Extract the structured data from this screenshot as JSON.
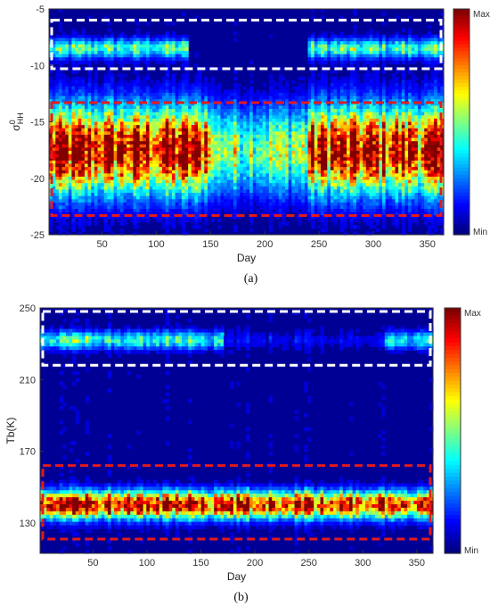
{
  "chart_data": [
    {
      "type": "heatmap",
      "panel_label": "(a)",
      "xlabel": "Day",
      "ylabel": "σ⁰HH",
      "ylabel_main": "σ",
      "ylabel_sup": "0",
      "ylabel_sub": "HH",
      "xlim": [
        1,
        365
      ],
      "ylim": [
        -25,
        -5
      ],
      "x_ticks": [
        50,
        100,
        150,
        200,
        250,
        300,
        350
      ],
      "y_ticks": [
        -25,
        -20,
        -15,
        -10,
        -5
      ],
      "colorbar": {
        "max_label": "Max",
        "min_label": "Min"
      },
      "regions": [
        {
          "color": "#ffffff",
          "x": [
            1,
            365
          ],
          "y": [
            -10.3,
            -6.0
          ]
        },
        {
          "color": "#e31a1c",
          "x": [
            1,
            365
          ],
          "y": [
            -23.3,
            -13.3
          ]
        }
      ],
      "bands": [
        {
          "center": -17.5,
          "width": 4.5,
          "intensity": 1.0,
          "dip_start": 150,
          "dip_end": 240,
          "dip_factor": 0.55
        },
        {
          "center": -8.5,
          "width": 1.0,
          "intensity": 0.42,
          "dip_start": 130,
          "dip_end": 240,
          "dip_factor": 0.0
        }
      ]
    },
    {
      "type": "heatmap",
      "panel_label": "(b)",
      "xlabel": "Day",
      "ylabel": "Tb(K)",
      "xlim": [
        1,
        365
      ],
      "ylim": [
        113,
        250
      ],
      "x_ticks": [
        50,
        100,
        150,
        200,
        250,
        300,
        350
      ],
      "y_ticks": [
        130,
        170,
        210,
        250
      ],
      "colorbar": {
        "max_label": "Max",
        "min_label": "Min"
      },
      "regions": [
        {
          "color": "#ffffff",
          "x": [
            1,
            365
          ],
          "y": [
            218,
            248
          ]
        },
        {
          "color": "#e31a1c",
          "x": [
            1,
            365
          ],
          "y": [
            121,
            162
          ]
        }
      ],
      "bands": [
        {
          "center": 140,
          "width": 9,
          "intensity": 1.0,
          "dip_start": 0,
          "dip_end": 0,
          "dip_factor": 1.0
        },
        {
          "center": 232,
          "width": 6,
          "intensity": 0.4,
          "dip_start": 170,
          "dip_end": 320,
          "dip_factor": 0.2
        }
      ]
    }
  ]
}
